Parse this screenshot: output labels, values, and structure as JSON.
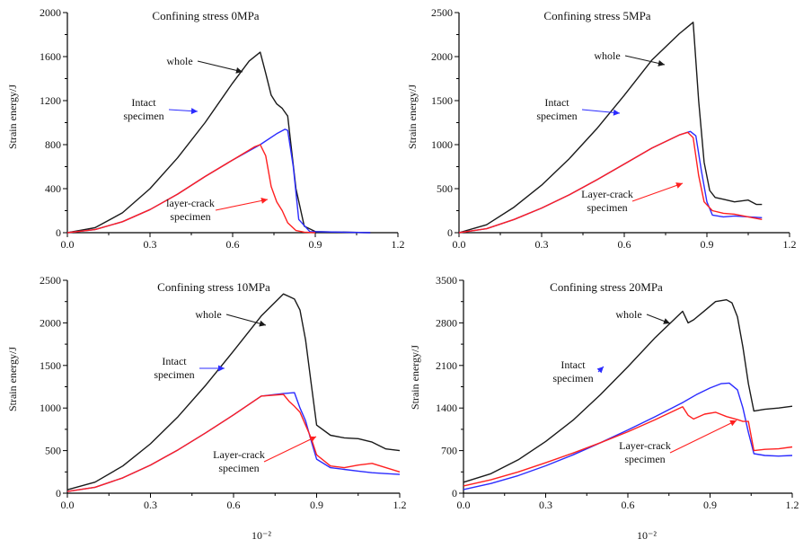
{
  "figure": {
    "shared_xlabel": "10⁻²"
  },
  "colors": {
    "whole": "#1a1a1a",
    "intact": "#2b2bff",
    "layer_crack": "#ff2020",
    "axis": "#000000"
  },
  "chart_data": [
    {
      "type": "line",
      "title": "Confining stress 0MPa",
      "ylabel": "Strain energy/J",
      "xlabel": "",
      "xlim": [
        0,
        1.2
      ],
      "ylim": [
        0,
        2000
      ],
      "xticks": [
        "0.0",
        "0.3",
        "0.6",
        "0.9",
        "1.2"
      ],
      "yticks": [
        "0",
        "400",
        "800",
        "1200",
        "1600",
        "2000"
      ],
      "grid": false,
      "annotations": [
        {
          "text": "whole",
          "series": "whole"
        },
        {
          "text": "Intact",
          "text2": "specimen",
          "series": "intact"
        },
        {
          "text": "layer-crack",
          "text2": "specimen",
          "series": "layer_crack"
        }
      ],
      "series": [
        {
          "key": "whole",
          "x": [
            0,
            0.1,
            0.2,
            0.3,
            0.4,
            0.5,
            0.6,
            0.66,
            0.7,
            0.72,
            0.74,
            0.76,
            0.78,
            0.8,
            0.83,
            0.86,
            0.9,
            1.1
          ],
          "y": [
            0,
            45,
            180,
            400,
            680,
            1000,
            1360,
            1560,
            1640,
            1450,
            1250,
            1170,
            1130,
            1060,
            400,
            60,
            10,
            0
          ]
        },
        {
          "key": "intact",
          "x": [
            0,
            0.1,
            0.2,
            0.3,
            0.4,
            0.5,
            0.6,
            0.7,
            0.76,
            0.79,
            0.8,
            0.82,
            0.84,
            0.88,
            1.1
          ],
          "y": [
            0,
            28,
            100,
            210,
            350,
            510,
            660,
            800,
            900,
            940,
            930,
            600,
            120,
            10,
            0
          ]
        },
        {
          "key": "layer_crack",
          "x": [
            0,
            0.1,
            0.2,
            0.3,
            0.4,
            0.5,
            0.6,
            0.68,
            0.7,
            0.72,
            0.74,
            0.76,
            0.78,
            0.8,
            0.83,
            0.86,
            0.9
          ],
          "y": [
            0,
            28,
            100,
            210,
            350,
            510,
            660,
            780,
            800,
            700,
            420,
            280,
            200,
            90,
            20,
            5,
            0
          ]
        }
      ]
    },
    {
      "type": "line",
      "title": "Confining stress 5MPa",
      "ylabel": "Strain energy/J",
      "xlabel": "",
      "xlim": [
        0,
        1.2
      ],
      "ylim": [
        0,
        2500
      ],
      "xticks": [
        "0.0",
        "0.3",
        "0.6",
        "0.9",
        "1.2"
      ],
      "yticks": [
        "0",
        "500",
        "1000",
        "1500",
        "2000",
        "2500"
      ],
      "grid": false,
      "annotations": [
        {
          "text": "whole",
          "series": "whole"
        },
        {
          "text": "Intact",
          "text2": "specimen",
          "series": "intact"
        },
        {
          "text": "Layer-crack",
          "text2": "specimen",
          "series": "layer_crack"
        }
      ],
      "series": [
        {
          "key": "whole",
          "x": [
            0,
            0.1,
            0.2,
            0.3,
            0.4,
            0.5,
            0.6,
            0.7,
            0.8,
            0.85,
            0.87,
            0.89,
            0.91,
            0.93,
            0.96,
            1.0,
            1.05,
            1.08,
            1.1
          ],
          "y": [
            0,
            90,
            290,
            540,
            840,
            1180,
            1560,
            1960,
            2260,
            2390,
            1500,
            800,
            480,
            400,
            380,
            350,
            370,
            320,
            320
          ]
        },
        {
          "key": "intact",
          "x": [
            0,
            0.1,
            0.2,
            0.3,
            0.4,
            0.5,
            0.6,
            0.7,
            0.8,
            0.84,
            0.86,
            0.88,
            0.9,
            0.92,
            0.96,
            1.0,
            1.1
          ],
          "y": [
            0,
            45,
            150,
            280,
            430,
            600,
            780,
            960,
            1110,
            1150,
            1100,
            700,
            350,
            200,
            180,
            190,
            170
          ]
        },
        {
          "key": "layer_crack",
          "x": [
            0,
            0.1,
            0.2,
            0.3,
            0.4,
            0.5,
            0.6,
            0.7,
            0.8,
            0.83,
            0.85,
            0.87,
            0.89,
            0.92,
            0.96,
            1.0,
            1.05,
            1.1
          ],
          "y": [
            0,
            45,
            150,
            280,
            430,
            600,
            780,
            960,
            1110,
            1140,
            1080,
            650,
            350,
            250,
            220,
            210,
            180,
            150
          ]
        }
      ]
    },
    {
      "type": "line",
      "title": "Confining stress 10MPa",
      "ylabel": "Strain energy/J",
      "xlabel": "",
      "xlim": [
        0,
        1.2
      ],
      "ylim": [
        0,
        2500
      ],
      "xticks": [
        "0.0",
        "0.3",
        "0.6",
        "0.9",
        "1.2"
      ],
      "yticks": [
        "0",
        "500",
        "1000",
        "1500",
        "2000",
        "2500"
      ],
      "grid": false,
      "annotations": [
        {
          "text": "whole",
          "series": "whole"
        },
        {
          "text": "Intact",
          "text2": "specimen",
          "series": "intact"
        },
        {
          "text": "Layer-crack",
          "text2": "specimen",
          "series": "layer_crack"
        }
      ],
      "series": [
        {
          "key": "whole",
          "x": [
            0,
            0.1,
            0.2,
            0.3,
            0.4,
            0.5,
            0.6,
            0.7,
            0.78,
            0.8,
            0.82,
            0.84,
            0.86,
            0.88,
            0.9,
            0.95,
            1.0,
            1.05,
            1.1,
            1.15,
            1.2
          ],
          "y": [
            40,
            130,
            320,
            580,
            900,
            1270,
            1670,
            2080,
            2340,
            2310,
            2280,
            2150,
            1800,
            1300,
            800,
            680,
            650,
            640,
            600,
            520,
            500
          ]
        },
        {
          "key": "intact",
          "x": [
            0,
            0.1,
            0.2,
            0.3,
            0.4,
            0.5,
            0.6,
            0.7,
            0.78,
            0.82,
            0.84,
            0.86,
            0.88,
            0.9,
            0.95,
            1.0,
            1.05,
            1.1,
            1.15,
            1.2
          ],
          "y": [
            20,
            70,
            180,
            330,
            510,
            710,
            920,
            1140,
            1170,
            1180,
            1000,
            850,
            620,
            400,
            300,
            280,
            260,
            240,
            230,
            220
          ]
        },
        {
          "key": "layer_crack",
          "x": [
            0,
            0.1,
            0.2,
            0.3,
            0.4,
            0.5,
            0.6,
            0.7,
            0.78,
            0.8,
            0.82,
            0.84,
            0.86,
            0.88,
            0.9,
            0.95,
            1.0,
            1.05,
            1.1,
            1.15,
            1.2
          ],
          "y": [
            20,
            70,
            180,
            330,
            510,
            710,
            920,
            1140,
            1160,
            1080,
            1020,
            950,
            800,
            650,
            450,
            320,
            300,
            330,
            350,
            300,
            250
          ]
        }
      ]
    },
    {
      "type": "line",
      "title": "Confining stress 20MPa",
      "ylabel": "Strain energy/J",
      "xlabel": "",
      "xlim": [
        0,
        1.2
      ],
      "ylim": [
        0,
        3500
      ],
      "xticks": [
        "0.0",
        "0.3",
        "0.6",
        "0.9",
        "1.2"
      ],
      "yticks": [
        "0",
        "700",
        "1400",
        "2100",
        "2800",
        "3500"
      ],
      "grid": false,
      "annotations": [
        {
          "text": "whole",
          "series": "whole"
        },
        {
          "text": "Intact",
          "text2": "specimen",
          "series": "intact"
        },
        {
          "text": "Layer-crack",
          "text2": "specimen",
          "series": "layer_crack"
        }
      ],
      "series": [
        {
          "key": "whole",
          "x": [
            0,
            0.1,
            0.2,
            0.3,
            0.4,
            0.5,
            0.6,
            0.7,
            0.8,
            0.82,
            0.84,
            0.88,
            0.92,
            0.96,
            0.98,
            1.0,
            1.02,
            1.04,
            1.06,
            1.1,
            1.15,
            1.2
          ],
          "y": [
            180,
            320,
            550,
            850,
            1200,
            1620,
            2080,
            2560,
            2990,
            2800,
            2850,
            3000,
            3150,
            3180,
            3130,
            2900,
            2400,
            1800,
            1350,
            1380,
            1400,
            1430
          ]
        },
        {
          "key": "intact",
          "x": [
            0,
            0.1,
            0.2,
            0.3,
            0.4,
            0.5,
            0.6,
            0.7,
            0.8,
            0.85,
            0.9,
            0.94,
            0.97,
            1.0,
            1.02,
            1.04,
            1.06,
            1.1,
            1.15,
            1.2
          ],
          "y": [
            60,
            160,
            290,
            450,
            630,
            830,
            1040,
            1260,
            1490,
            1620,
            1730,
            1800,
            1810,
            1700,
            1400,
            1000,
            650,
            620,
            610,
            620
          ]
        },
        {
          "key": "layer_crack",
          "x": [
            0,
            0.1,
            0.2,
            0.3,
            0.4,
            0.5,
            0.6,
            0.7,
            0.8,
            0.82,
            0.84,
            0.88,
            0.92,
            0.96,
            1.0,
            1.02,
            1.04,
            1.06,
            1.1,
            1.15,
            1.2
          ],
          "y": [
            120,
            220,
            350,
            500,
            660,
            830,
            1010,
            1210,
            1420,
            1280,
            1220,
            1300,
            1330,
            1260,
            1210,
            1180,
            1180,
            700,
            720,
            730,
            760
          ]
        }
      ]
    }
  ]
}
